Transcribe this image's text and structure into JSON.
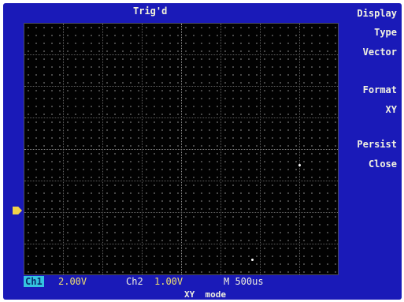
{
  "header": {
    "trigger_status": "Trig'd"
  },
  "trigger_marker_label": "T",
  "menu": {
    "title": "Display",
    "items": [
      {
        "label": "Type",
        "value": "Vector"
      },
      {
        "label": "Format",
        "value": "XY"
      },
      {
        "label": "Persist",
        "value": "Close"
      }
    ]
  },
  "status_bar": {
    "ch1_label": "Ch1",
    "ch1_volts": "2.00V",
    "ch2_label": "Ch2",
    "ch2_volts": "1.00V",
    "timebase": "M 500us"
  },
  "mode": "XY  mode",
  "colors": {
    "frame": "#1a1ab8",
    "screen": "#020202",
    "ch1": "#34c4e0",
    "volts": "#f0e070"
  }
}
